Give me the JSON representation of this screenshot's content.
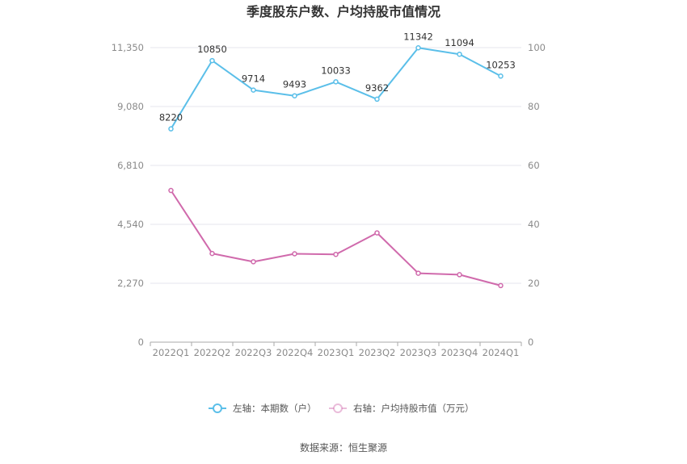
{
  "chart_data": {
    "type": "line",
    "title": "季度股东户数、户均持股市值情况",
    "categories": [
      "2022Q1",
      "2022Q2",
      "2022Q3",
      "2022Q4",
      "2023Q1",
      "2023Q2",
      "2023Q3",
      "2023Q4",
      "2024Q1"
    ],
    "left_axis": {
      "min": 0,
      "max": 11350,
      "ticks": [
        0,
        2270,
        4540,
        6810,
        9080,
        11350
      ],
      "tick_labels": [
        "0",
        "2,270",
        "4,540",
        "6,810",
        "9,080",
        "11,350"
      ]
    },
    "right_axis": {
      "min": 0,
      "max": 100,
      "ticks": [
        0,
        20,
        40,
        60,
        80,
        100
      ],
      "tick_labels": [
        "0",
        "20",
        "40",
        "60",
        "80",
        "100"
      ]
    },
    "series": [
      {
        "name": "左轴：本期数（户）",
        "axis": "left",
        "color": "#5bbfe9",
        "values": [
          8220,
          10850,
          9714,
          9493,
          10033,
          9362,
          11342,
          11094,
          10253
        ],
        "labels": [
          "8220",
          "10850",
          "9714",
          "9493",
          "10033",
          "9362",
          "11342",
          "11094",
          "10253"
        ]
      },
      {
        "name": "右轴：户均持股市值（万元）",
        "axis": "right",
        "color": "#d06aac",
        "values": [
          51.5,
          30.1,
          27.3,
          30.0,
          29.8,
          37.1,
          23.4,
          22.9,
          19.2
        ]
      }
    ],
    "grid": true,
    "legend_position": "bottom"
  },
  "source_text": "数据来源：恒生聚源",
  "colors": {
    "axis": "#aaaaaa",
    "grid": "#e6e6ee",
    "left_series": "#5bbfe9",
    "right_series": "#d06aac"
  }
}
